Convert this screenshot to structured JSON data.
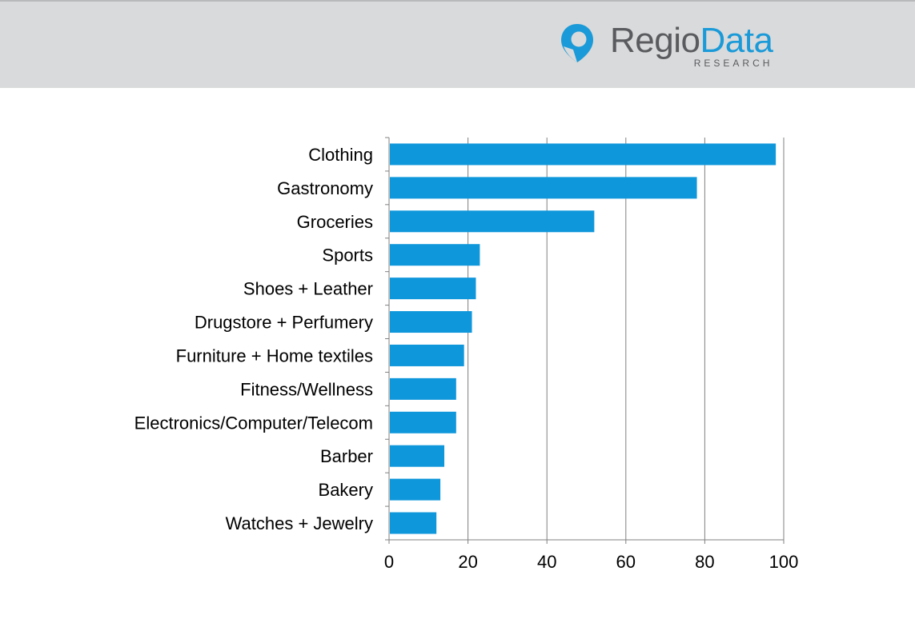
{
  "brand": {
    "name_part1": "Regio",
    "name_part2": "Data",
    "subtitle": "RESEARCH",
    "logo_icon": "map-pin-icon",
    "accent_color": "#1a9ad8",
    "text_color": "#5a5b5e"
  },
  "colors": {
    "header_bg": "#d9dadb",
    "bar": "#0f97db",
    "grid": "#808080"
  },
  "chart_data": {
    "type": "bar",
    "orientation": "horizontal",
    "categories": [
      "Clothing",
      "Gastronomy",
      "Groceries",
      "Sports",
      "Shoes + Leather",
      "Drugstore + Perfumery",
      "Furniture + Home textiles",
      "Fitness/Wellness",
      "Electronics/Computer/Telecom",
      "Barber",
      "Bakery",
      "Watches + Jewelry"
    ],
    "values": [
      98,
      78,
      52,
      23,
      22,
      21,
      19,
      17,
      17,
      14,
      13,
      12
    ],
    "xlim": [
      0,
      100
    ],
    "xticks": [
      "0",
      "20",
      "40",
      "60",
      "80",
      "100"
    ],
    "grid": "vertical",
    "title": "",
    "xlabel": "",
    "ylabel": ""
  }
}
